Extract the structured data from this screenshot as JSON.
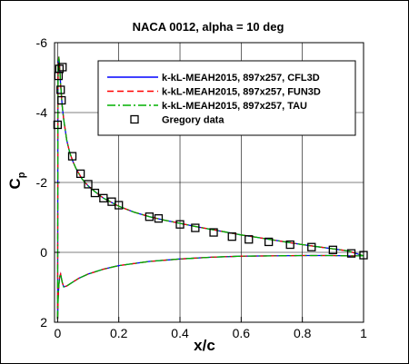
{
  "chart_data": {
    "type": "line",
    "title": "NACA 0012, alpha = 10 deg",
    "xlabel": "x/c",
    "ylabel": {
      "main": "C",
      "sub": "p"
    },
    "xlim": [
      -0.01,
      1.0
    ],
    "ylim": [
      -6,
      2
    ],
    "y_inverted": true,
    "grid": true,
    "legend_position": "top-right",
    "x_ticks": [
      0,
      0.2,
      0.4,
      0.6,
      0.8,
      1
    ],
    "x_tick_labels": [
      "0",
      "0.2",
      "0.4",
      "0.6",
      "0.8",
      "1"
    ],
    "y_ticks": [
      -6,
      -4,
      -2,
      0,
      2
    ],
    "y_tick_labels": [
      "-6",
      "-4",
      "-2",
      "0",
      "2"
    ],
    "series": [
      {
        "name": "k-kL-MEAH2015, 897x257, CFL3D",
        "color": "#0000ff",
        "dash": "solid",
        "upper": {
          "x": [
            0.0,
            0.001,
            0.002,
            0.004,
            0.006,
            0.008,
            0.01,
            0.015,
            0.02,
            0.03,
            0.04,
            0.05,
            0.06,
            0.08,
            0.1,
            0.12,
            0.15,
            0.2,
            0.25,
            0.3,
            0.35,
            0.4,
            0.45,
            0.5,
            0.55,
            0.6,
            0.65,
            0.7,
            0.75,
            0.8,
            0.85,
            0.9,
            0.95,
            1.0
          ],
          "y": [
            1.9,
            -4.0,
            -5.4,
            -5.6,
            -5.4,
            -5.1,
            -4.8,
            -4.2,
            -3.8,
            -3.2,
            -2.85,
            -2.6,
            -2.4,
            -2.1,
            -1.9,
            -1.75,
            -1.55,
            -1.32,
            -1.15,
            -1.02,
            -0.92,
            -0.83,
            -0.74,
            -0.66,
            -0.58,
            -0.5,
            -0.43,
            -0.36,
            -0.29,
            -0.22,
            -0.16,
            -0.1,
            -0.04,
            0.1
          ]
        },
        "lower": {
          "x": [
            0.0,
            0.001,
            0.002,
            0.004,
            0.007,
            0.01,
            0.015,
            0.02,
            0.03,
            0.05,
            0.07,
            0.1,
            0.15,
            0.2,
            0.3,
            0.4,
            0.5,
            0.6,
            0.7,
            0.8,
            0.9,
            0.95,
            1.0
          ],
          "y": [
            1.9,
            1.6,
            1.3,
            0.95,
            0.7,
            0.62,
            0.85,
            0.99,
            0.96,
            0.85,
            0.74,
            0.62,
            0.48,
            0.38,
            0.26,
            0.19,
            0.14,
            0.11,
            0.1,
            0.09,
            0.09,
            0.1,
            0.1
          ]
        }
      },
      {
        "name": "k-kL-MEAH2015, 897x257, FUN3D",
        "color": "#ff0000",
        "dash": "dashed",
        "upper": {
          "x": [
            0.0,
            0.001,
            0.002,
            0.004,
            0.006,
            0.008,
            0.01,
            0.015,
            0.02,
            0.03,
            0.04,
            0.05,
            0.06,
            0.08,
            0.1,
            0.12,
            0.15,
            0.2,
            0.25,
            0.3,
            0.35,
            0.4,
            0.45,
            0.5,
            0.55,
            0.6,
            0.65,
            0.7,
            0.75,
            0.8,
            0.85,
            0.9,
            0.95,
            1.0
          ],
          "y": [
            1.9,
            -4.0,
            -5.4,
            -5.6,
            -5.4,
            -5.1,
            -4.8,
            -4.2,
            -3.8,
            -3.2,
            -2.85,
            -2.6,
            -2.4,
            -2.1,
            -1.9,
            -1.75,
            -1.55,
            -1.32,
            -1.15,
            -1.02,
            -0.92,
            -0.83,
            -0.74,
            -0.66,
            -0.58,
            -0.5,
            -0.43,
            -0.36,
            -0.29,
            -0.22,
            -0.16,
            -0.1,
            -0.04,
            0.1
          ]
        },
        "lower": {
          "x": [
            0.0,
            0.001,
            0.002,
            0.004,
            0.007,
            0.01,
            0.015,
            0.02,
            0.03,
            0.05,
            0.07,
            0.1,
            0.15,
            0.2,
            0.3,
            0.4,
            0.5,
            0.6,
            0.7,
            0.8,
            0.9,
            0.95,
            1.0
          ],
          "y": [
            1.9,
            1.6,
            1.3,
            0.95,
            0.7,
            0.62,
            0.85,
            0.99,
            0.96,
            0.85,
            0.74,
            0.62,
            0.48,
            0.38,
            0.26,
            0.19,
            0.14,
            0.11,
            0.1,
            0.09,
            0.09,
            0.1,
            0.1
          ]
        }
      },
      {
        "name": "k-kL-MEAH2015, 897x257, TAU",
        "color": "#00b000",
        "dash": "dashdot",
        "upper": {
          "x": [
            0.0,
            0.001,
            0.002,
            0.004,
            0.006,
            0.008,
            0.01,
            0.015,
            0.02,
            0.03,
            0.04,
            0.05,
            0.06,
            0.08,
            0.1,
            0.12,
            0.15,
            0.2,
            0.25,
            0.3,
            0.35,
            0.4,
            0.45,
            0.5,
            0.55,
            0.6,
            0.65,
            0.7,
            0.75,
            0.8,
            0.85,
            0.9,
            0.95,
            1.0
          ],
          "y": [
            1.9,
            -4.0,
            -5.4,
            -5.6,
            -5.4,
            -5.1,
            -4.8,
            -4.2,
            -3.8,
            -3.2,
            -2.85,
            -2.6,
            -2.4,
            -2.1,
            -1.9,
            -1.75,
            -1.55,
            -1.32,
            -1.15,
            -1.02,
            -0.92,
            -0.83,
            -0.74,
            -0.66,
            -0.58,
            -0.5,
            -0.43,
            -0.36,
            -0.29,
            -0.22,
            -0.16,
            -0.1,
            -0.04,
            0.1
          ]
        },
        "lower": {
          "x": [
            0.0,
            0.001,
            0.002,
            0.004,
            0.007,
            0.01,
            0.015,
            0.02,
            0.03,
            0.05,
            0.07,
            0.1,
            0.15,
            0.2,
            0.3,
            0.4,
            0.5,
            0.6,
            0.7,
            0.8,
            0.9,
            0.95,
            1.0
          ],
          "y": [
            1.9,
            1.6,
            1.3,
            0.95,
            0.7,
            0.62,
            0.85,
            0.99,
            0.96,
            0.85,
            0.74,
            0.62,
            0.48,
            0.38,
            0.26,
            0.19,
            0.14,
            0.11,
            0.1,
            0.09,
            0.09,
            0.1,
            0.1
          ]
        }
      },
      {
        "name": "Gregory data",
        "color": "#000000",
        "marker": "square",
        "x": [
          0.0,
          0.003,
          0.006,
          0.01,
          0.013,
          0.016,
          0.048,
          0.075,
          0.1,
          0.122,
          0.15,
          0.177,
          0.2,
          0.3,
          0.33,
          0.4,
          0.45,
          0.51,
          0.57,
          0.625,
          0.69,
          0.76,
          0.83,
          0.9,
          0.96,
          1.0
        ],
        "y": [
          -3.65,
          -5.05,
          -5.25,
          -4.65,
          -4.35,
          -5.3,
          -2.75,
          -2.25,
          -1.95,
          -1.7,
          -1.55,
          -1.45,
          -1.35,
          -1.02,
          -0.97,
          -0.8,
          -0.7,
          -0.57,
          -0.45,
          -0.37,
          -0.3,
          -0.22,
          -0.15,
          -0.07,
          0.03,
          0.08
        ]
      }
    ]
  }
}
